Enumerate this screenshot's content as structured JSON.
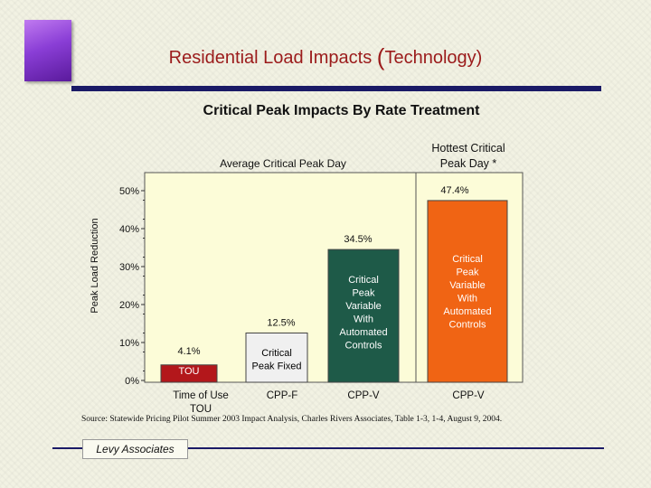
{
  "page": {
    "title_before": "Residential Load Impacts ",
    "title_paren_open": "(",
    "title_main": "Technology",
    "title_paren_close": ")",
    "subtitle": "Critical Peak Impacts By Rate Treatment",
    "source": "Source:   Statewide Pricing Pilot Summer 2003 Impact Analysis, Charles Rivers Associates, Table 1-3, 1-4, August 9, 2004.",
    "footer_label": "Levy Associates",
    "colors": {
      "title": "#9b1b1b",
      "accent_bar": "#1a1a66",
      "logo": "#8a3ed6"
    }
  },
  "chart_data": {
    "type": "bar",
    "ylabel": "Peak Load Reduction",
    "ylim": [
      0,
      50
    ],
    "yticks": [
      "0%",
      "10%",
      "20%",
      "30%",
      "40%",
      "50%"
    ],
    "group_labels": [
      "Average Critical Peak Day",
      "Hottest Critical Peak Day *"
    ],
    "categories": [
      "Time of Use TOU",
      "CPP-F",
      "CPP-V",
      "CPP-V"
    ],
    "values": [
      4.1,
      12.5,
      34.5,
      47.4
    ],
    "value_labels": [
      "4.1%",
      "12.5%",
      "34.5%",
      "47.4%"
    ],
    "bar_texts": [
      "TOU",
      "Critical Peak Fixed",
      "Critical Peak Variable With Automated Controls",
      "Critical Peak Variable With Automated Controls"
    ],
    "bar_colors": [
      "#b3171b",
      "#f0f0f0",
      "#1e5a48",
      "#f06414"
    ],
    "bar_text_colors": [
      "#ffffff",
      "#000000",
      "#ffffff",
      "#ffffff"
    ],
    "grid": false
  }
}
